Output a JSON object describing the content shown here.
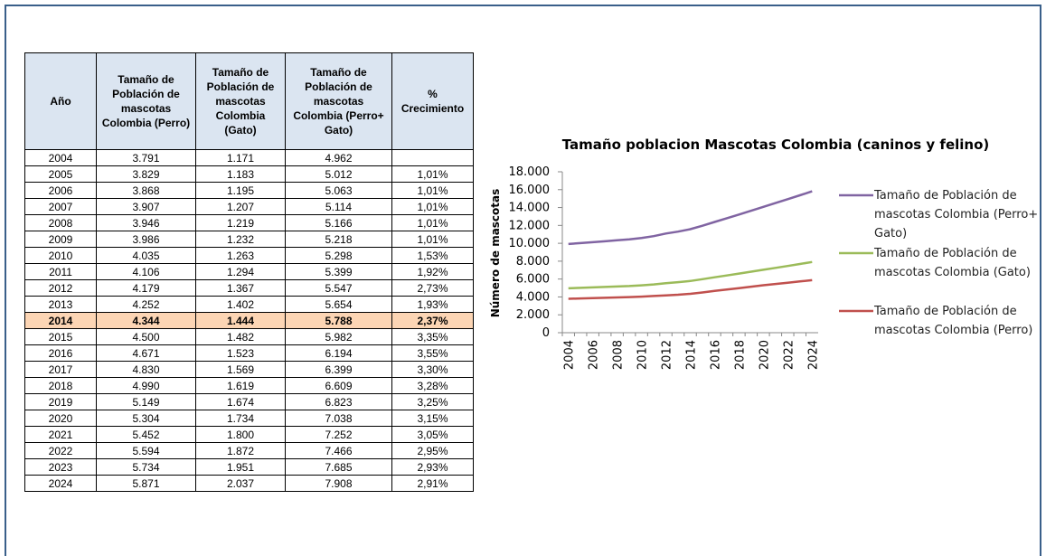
{
  "table": {
    "header": [
      "Año",
      "Tamaño de Población de mascotas Colombia (Perro)",
      "Tamaño de Población de mascotas Colombia (Gato)",
      "Tamaño de Población de mascotas Colombia (Perro+ Gato)",
      "% Crecimiento"
    ],
    "rows": [
      [
        "2004",
        "3.791",
        "1.171",
        "4.962",
        null
      ],
      [
        "2005",
        "3.829",
        "1.183",
        "5.012",
        "1,01%"
      ],
      [
        "2006",
        "3.868",
        "1.195",
        "5.063",
        "1,01%"
      ],
      [
        "2007",
        "3.907",
        "1.207",
        "5.114",
        "1,01%"
      ],
      [
        "2008",
        "3.946",
        "1.219",
        "5.166",
        "1,01%"
      ],
      [
        "2009",
        "3.986",
        "1.232",
        "5.218",
        "1,01%"
      ],
      [
        "2010",
        "4.035",
        "1.263",
        "5.298",
        "1,53%"
      ],
      [
        "2011",
        "4.106",
        "1.294",
        "5.399",
        "1,92%"
      ],
      [
        "2012",
        "4.179",
        "1.367",
        "5.547",
        "2,73%"
      ],
      [
        "2013",
        "4.252",
        "1.402",
        "5.654",
        "1,93%"
      ],
      [
        "2014",
        "4.344",
        "1.444",
        "5.788",
        "2,37%"
      ],
      [
        "2015",
        "4.500",
        "1.482",
        "5.982",
        "3,35%"
      ],
      [
        "2016",
        "4.671",
        "1.523",
        "6.194",
        "3,55%"
      ],
      [
        "2017",
        "4.830",
        "1.569",
        "6.399",
        "3,30%"
      ],
      [
        "2018",
        "4.990",
        "1.619",
        "6.609",
        "3,28%"
      ],
      [
        "2019",
        "5.149",
        "1.674",
        "6.823",
        "3,25%"
      ],
      [
        "2020",
        "5.304",
        "1.734",
        "7.038",
        "3,15%"
      ],
      [
        "2021",
        "5.452",
        "1.800",
        "7.252",
        "3,05%"
      ],
      [
        "2022",
        "5.594",
        "1.872",
        "7.466",
        "2,95%"
      ],
      [
        "2023",
        "5.734",
        "1.951",
        "7.685",
        "2,93%"
      ],
      [
        "2024",
        "5.871",
        "2.037",
        "7.908",
        "2,91%"
      ]
    ],
    "highlight_row": 10
  },
  "chart_data": {
    "type": "line",
    "stacked": true,
    "title": "Tamaño poblacion  Mascotas Colombia (caninos y felino)",
    "y_label": "Número de mascotas",
    "categories": [
      "2004",
      null,
      "2006",
      null,
      "2008",
      null,
      "2010",
      null,
      "2012",
      null,
      "2014",
      null,
      "2016",
      null,
      "2018",
      null,
      "2020",
      null,
      "2022",
      null,
      "2024"
    ],
    "series": [
      {
        "name": "Tamaño de Población de mascotas Colombia (Perro)",
        "color": "#c0504d",
        "values": [
          3791,
          3829,
          3868,
          3907,
          3946,
          3986,
          4035,
          4106,
          4179,
          4252,
          4344,
          4500,
          4671,
          4830,
          4990,
          5149,
          5304,
          5452,
          5594,
          5734,
          5871
        ]
      },
      {
        "name": "Tamaño de Población de mascotas Colombia (Gato)",
        "color": "#9bbb59",
        "values": [
          1171,
          1183,
          1195,
          1207,
          1219,
          1232,
          1263,
          1294,
          1367,
          1402,
          1444,
          1482,
          1523,
          1569,
          1619,
          1674,
          1734,
          1800,
          1872,
          1951,
          2037
        ]
      },
      {
        "name": "Tamaño de Población de mascotas Colombia (Perro+ Gato)",
        "color": "#8064a2",
        "values": [
          4962,
          5012,
          5063,
          5114,
          5166,
          5218,
          5298,
          5399,
          5547,
          5654,
          5788,
          5982,
          6194,
          6399,
          6609,
          6823,
          7038,
          7252,
          7466,
          7685,
          7908
        ]
      }
    ],
    "ylim": [
      0,
      18000
    ],
    "yticks": [
      0,
      {
        "value": 2000,
        "label": "2.000"
      },
      {
        "value": 4000,
        "label": "4.000"
      },
      {
        "value": 6000,
        "label": "6.000"
      },
      {
        "value": 8000,
        "label": "8.000"
      },
      {
        "value": 10000,
        "label": "10.000"
      },
      {
        "value": 12000,
        "label": "12.000"
      },
      {
        "value": 14000,
        "label": "14.000"
      },
      {
        "value": 16000,
        "label": "16.000"
      },
      {
        "value": 18000,
        "label": "18.000"
      }
    ],
    "legend": "right"
  }
}
